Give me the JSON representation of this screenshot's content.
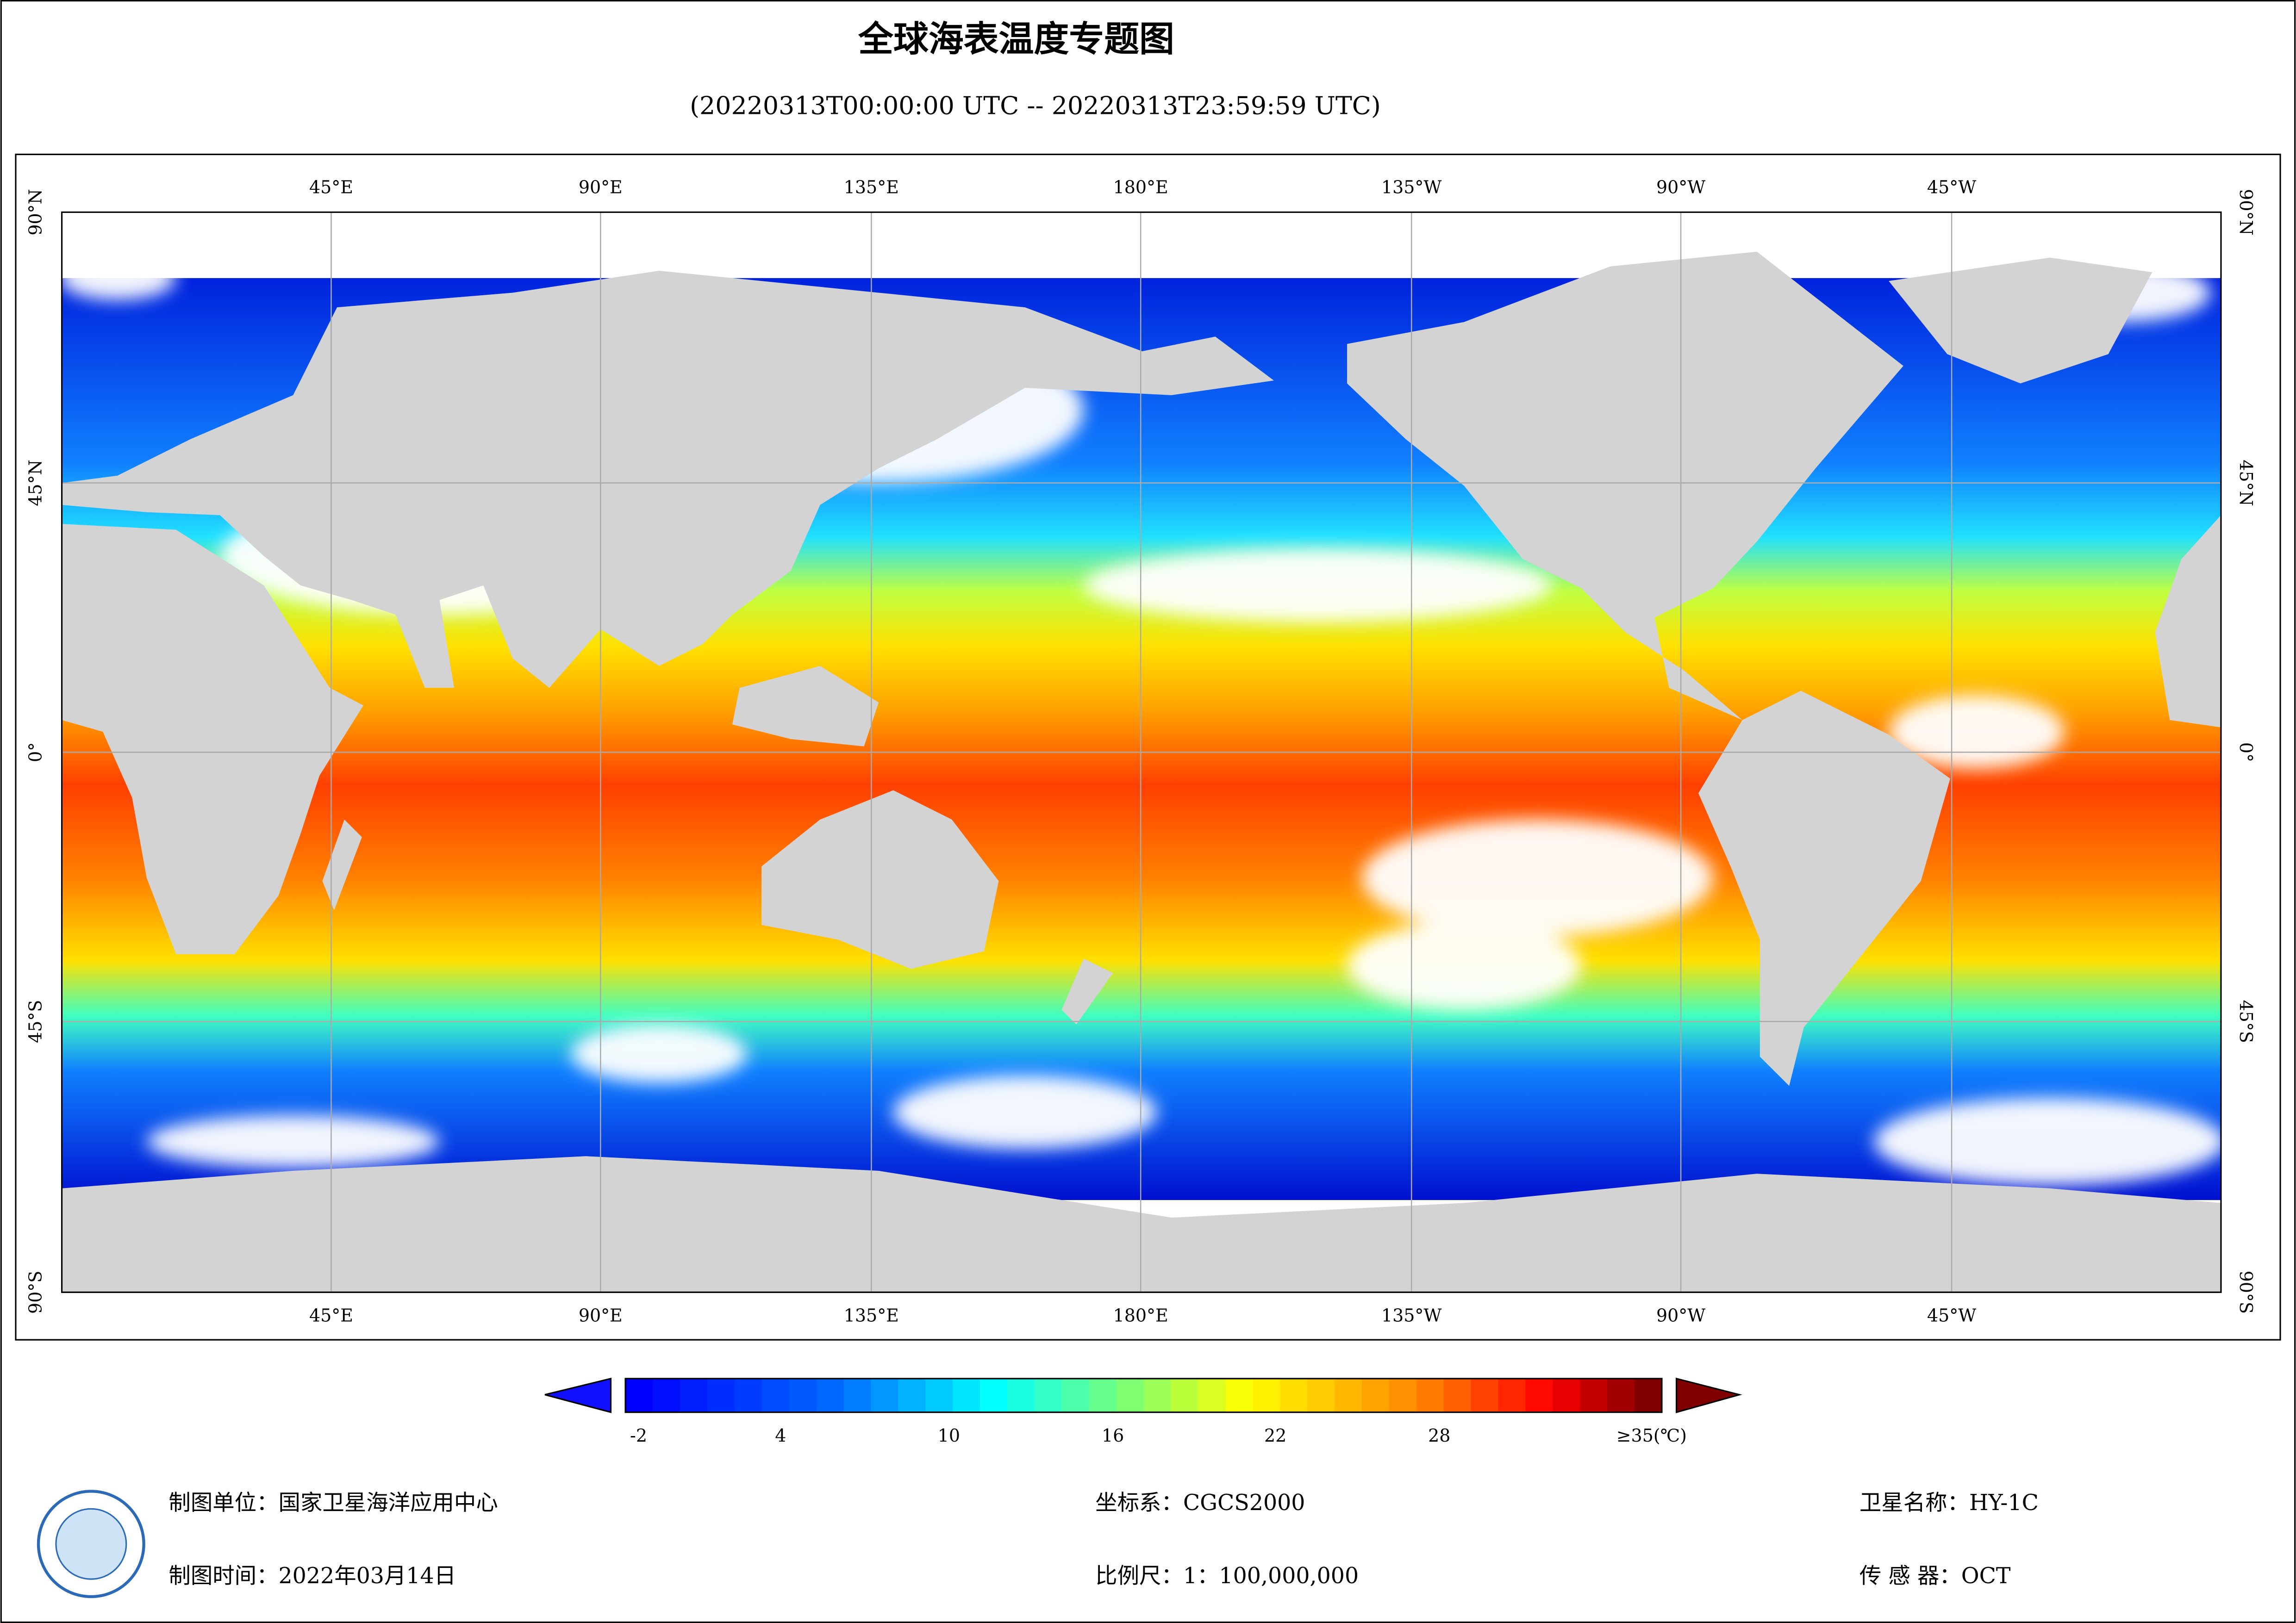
{
  "title": "全球海表温度专题图",
  "subtitle": "(20220313T00:00:00 UTC -- 20220313T23:59:59 UTC)",
  "map": {
    "lon_labels": [
      "45°E",
      "90°E",
      "135°E",
      "180°E",
      "135°W",
      "90°W",
      "45°W"
    ],
    "lat_labels": [
      "90°N",
      "45°N",
      "0°",
      "45°S",
      "90°S"
    ]
  },
  "colorbar": {
    "labels": [
      "-2",
      "4",
      "10",
      "16",
      "22",
      "28",
      "≥35(℃)"
    ]
  },
  "footer": {
    "unit": "制图单位：国家卫星海洋应用中心",
    "time": "制图时间：2022年03月14日",
    "crs": "坐标系：CGCS2000",
    "scale": "比例尺：1：100,000,000",
    "satellite": "卫星名称：HY-1C",
    "sensor": "传 感 器：OCT"
  }
}
